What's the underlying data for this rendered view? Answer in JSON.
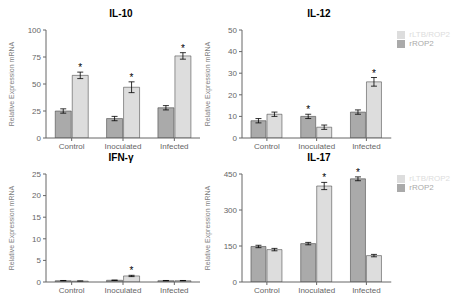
{
  "chart_data": [
    {
      "type": "bar",
      "title": "IL-10",
      "y_label": "Relative Expression mRNA",
      "categories": [
        "Control",
        "Inoculated",
        "Infected"
      ],
      "series": [
        {
          "name": "rROP2",
          "color": "#aaaaaa",
          "values": [
            25,
            18,
            28
          ],
          "error": [
            2,
            2,
            2
          ]
        },
        {
          "name": "rLTB/ROP2",
          "color": "#dddddd",
          "values": [
            58,
            47,
            76
          ],
          "error": [
            3,
            5,
            3
          ],
          "annotations": [
            "*",
            "*",
            "*"
          ]
        }
      ],
      "ylim": [
        0,
        100
      ],
      "yticks": [
        0,
        25,
        50,
        75,
        100
      ],
      "grid": false
    },
    {
      "type": "bar",
      "title": "IL-12",
      "y_label": "Relative Expression mRNA",
      "categories": [
        "Control",
        "Inoculated",
        "Infected"
      ],
      "series": [
        {
          "name": "rROP2",
          "color": "#aaaaaa",
          "values": [
            8,
            10,
            12
          ],
          "error": [
            1,
            1,
            1
          ],
          "annotations": [
            null,
            "*",
            null
          ]
        },
        {
          "name": "rLTB/ROP2",
          "color": "#dddddd",
          "values": [
            11,
            5,
            26
          ],
          "error": [
            1,
            1,
            2
          ],
          "annotations": [
            null,
            null,
            "*"
          ]
        }
      ],
      "ylim": [
        0,
        50
      ],
      "yticks": [
        0,
        10,
        20,
        30,
        40,
        50
      ],
      "grid": false,
      "legend": "right"
    },
    {
      "type": "bar",
      "title": "IFN-γ",
      "y_label": "Relative Expression mRNA",
      "categories": [
        "Control",
        "Inoculated",
        "Infected"
      ],
      "series": [
        {
          "name": "rROP2",
          "color": "#aaaaaa",
          "values": [
            0.3,
            0.4,
            0.3
          ],
          "error": [
            0.05,
            0.05,
            0.05
          ]
        },
        {
          "name": "rLTB/ROP2",
          "color": "#dddddd",
          "values": [
            0.2,
            1.4,
            0.3
          ],
          "error": [
            0.05,
            0.15,
            0.05
          ],
          "annotations": [
            null,
            "*",
            null
          ]
        }
      ],
      "ylim": [
        0,
        25
      ],
      "yticks": [
        0,
        5,
        10,
        15,
        20,
        25
      ],
      "grid": false
    },
    {
      "type": "bar",
      "title": "IL-17",
      "y_label": "Relative Expression mRNA",
      "categories": [
        "Control",
        "Inoculated",
        "Infected"
      ],
      "series": [
        {
          "name": "rROP2",
          "color": "#aaaaaa",
          "values": [
            148,
            160,
            430
          ],
          "error": [
            5,
            5,
            8
          ],
          "annotations": [
            null,
            null,
            "*"
          ]
        },
        {
          "name": "rLTB/ROP2",
          "color": "#dddddd",
          "values": [
            135,
            400,
            110
          ],
          "error": [
            5,
            15,
            5
          ],
          "annotations": [
            null,
            "*",
            null
          ]
        }
      ],
      "ylim": [
        0,
        450
      ],
      "yticks": [
        0,
        150,
        300,
        450
      ],
      "grid": false,
      "legend": "right"
    }
  ]
}
